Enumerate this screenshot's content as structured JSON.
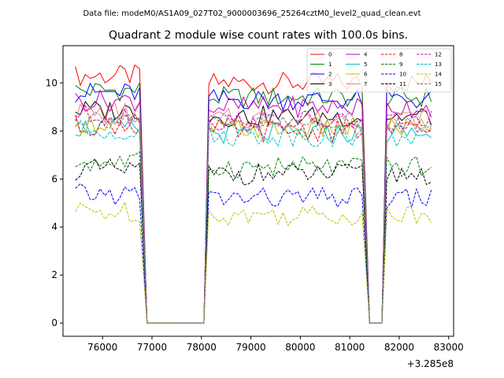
{
  "figure": {
    "suptitle": "Data file: modeM0/AS1A09_027T02_9000003696_25264cztM0_level2_quad_clean.evt"
  },
  "chart_data": {
    "type": "line",
    "title": "Quadrant 2 module wise count rates with 100.0s bins.",
    "xlabel": "",
    "ylabel": "",
    "x_offset_label": "+3.285e8",
    "x_offset": 328500000,
    "xlim": [
      75200,
      83100
    ],
    "ylim": [
      -0.55,
      11.55
    ],
    "xticks": [
      76000,
      77000,
      78000,
      79000,
      80000,
      81000,
      82000,
      83000
    ],
    "xtick_labels": [
      "76000",
      "77000",
      "78000",
      "79000",
      "80000",
      "81000",
      "82000",
      "83000"
    ],
    "yticks": [
      0,
      2,
      4,
      6,
      8,
      10
    ],
    "ytick_labels": [
      "0",
      "2",
      "4",
      "6",
      "8",
      "10"
    ],
    "legend_position": "top-right",
    "series": [
      {
        "name": "0",
        "color": "#ff0000",
        "dash": "solid",
        "level": 10.0
      },
      {
        "name": "1",
        "color": "#008000",
        "dash": "solid",
        "level": 9.4
      },
      {
        "name": "2",
        "color": "#0000ff",
        "dash": "solid",
        "level": 9.3
      },
      {
        "name": "3",
        "color": "#000000",
        "dash": "solid",
        "level": 8.6
      },
      {
        "name": "4",
        "color": "#bf00bf",
        "dash": "solid",
        "level": 9.0
      },
      {
        "name": "5",
        "color": "#00bfbf",
        "dash": "solid",
        "level": 7.9
      },
      {
        "name": "6",
        "color": "#bfbf00",
        "dash": "solid",
        "level": 8.1
      },
      {
        "name": "7",
        "color": "#f08080",
        "dash": "solid",
        "level": 8.5
      },
      {
        "name": "8",
        "color": "#ff0000",
        "dash": "dashed",
        "level": 8.0
      },
      {
        "name": "9",
        "color": "#008000",
        "dash": "dashed",
        "level": 6.5
      },
      {
        "name": "10",
        "color": "#0000ff",
        "dash": "dashed",
        "level": 5.2
      },
      {
        "name": "11",
        "color": "#000000",
        "dash": "dashed",
        "level": 6.2
      },
      {
        "name": "12",
        "color": "#bf00bf",
        "dash": "dashed",
        "level": 8.4
      },
      {
        "name": "13",
        "color": "#00bfbf",
        "dash": "dashed",
        "level": 7.8
      },
      {
        "name": "14",
        "color": "#bfbf00",
        "dash": "dashed",
        "level": 4.5
      },
      {
        "name": "15",
        "color": "#808080",
        "dash": "dashed",
        "level": 8.3
      }
    ],
    "segments": [
      {
        "start": 75450,
        "end": 76800
      },
      {
        "start": 78150,
        "end": 81300
      },
      {
        "start": 81750,
        "end": 82650
      }
    ],
    "bin_width": 100,
    "gap_value": 0
  }
}
